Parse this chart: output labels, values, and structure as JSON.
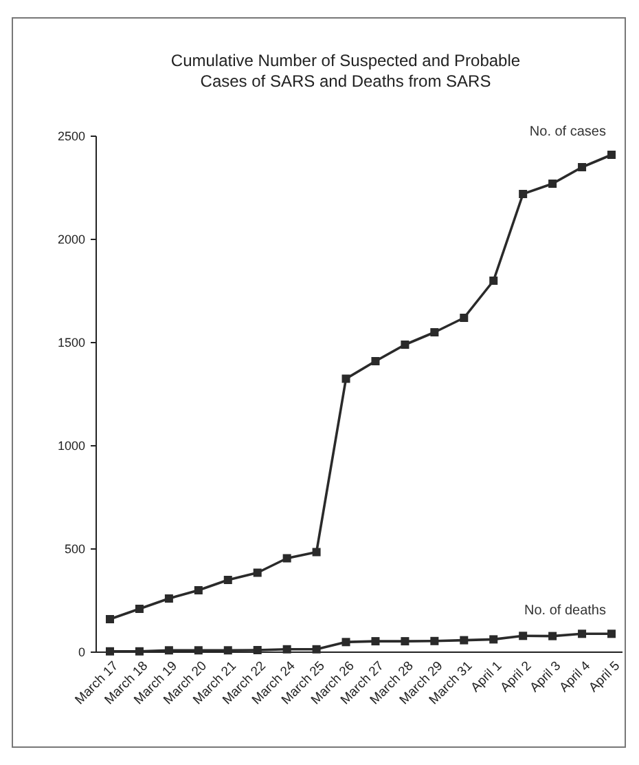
{
  "chart_data": {
    "type": "line",
    "title": "Cumulative Number of Suspected and Probable\nCases of SARS and Deaths from SARS",
    "categories": [
      "March 17",
      "March 18",
      "March 19",
      "March 20",
      "March 21",
      "March 22",
      "March 24",
      "March 25",
      "March 26",
      "March 27",
      "March 28",
      "March 29",
      "March 31",
      "April 1",
      "April 2",
      "April 3",
      "April 4",
      "April 5"
    ],
    "series": [
      {
        "name": "No. of cases",
        "color": "#2a2a2a",
        "values": [
          160,
          210,
          260,
          300,
          350,
          385,
          455,
          485,
          1325,
          1410,
          1490,
          1550,
          1620,
          1800,
          2220,
          2270,
          2350,
          2410
        ]
      },
      {
        "name": "No. of deaths",
        "color": "#2a2a2a",
        "values": [
          4,
          4,
          9,
          9,
          9,
          10,
          14,
          14,
          49,
          53,
          53,
          54,
          58,
          62,
          79,
          78,
          89,
          89
        ]
      }
    ],
    "ylim": [
      0,
      2500
    ],
    "yticks": [
      0,
      500,
      1000,
      1500,
      2000,
      2500
    ],
    "grid": false,
    "marker": "square",
    "line_style": "solid"
  }
}
